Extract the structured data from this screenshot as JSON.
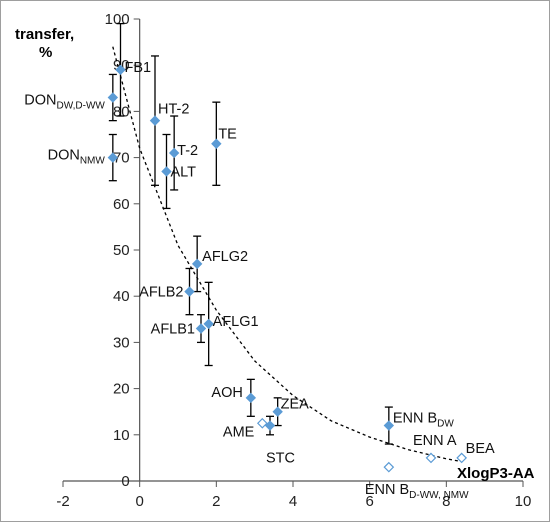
{
  "chart_data": {
    "type": "scatter",
    "title": "",
    "ylabel_lines": [
      "transfer,",
      "%"
    ],
    "xlabel": "XlogP3-AA",
    "xlim": [
      -2,
      10
    ],
    "ylim": [
      0,
      100
    ],
    "x_ticks": [
      -2,
      0,
      2,
      4,
      6,
      8,
      10
    ],
    "y_ticks": [
      0,
      10,
      20,
      30,
      40,
      50,
      60,
      70,
      80,
      90,
      100
    ],
    "grid": false,
    "colors": {
      "filled": "#5b9bd5",
      "open": "#5b9bd5",
      "error_bar": "#000000",
      "trend": "#000000",
      "axis": "#555555"
    },
    "points": [
      {
        "label": "FB1",
        "x": -0.5,
        "y": 89,
        "err": [
          79,
          99
        ],
        "style": "filled"
      },
      {
        "label": "DON",
        "sub": "DW,D-WW",
        "x": -0.7,
        "y": 83,
        "err": [
          78,
          88
        ],
        "style": "filled"
      },
      {
        "label": "DON",
        "sub": "NMW",
        "x": -0.7,
        "y": 70,
        "err": [
          65,
          75
        ],
        "style": "filled"
      },
      {
        "label": "HT-2",
        "x": 0.4,
        "y": 78,
        "err": [
          64,
          92
        ],
        "style": "filled"
      },
      {
        "label": "T-2",
        "x": 0.9,
        "y": 71,
        "err": [
          63,
          79
        ],
        "style": "filled"
      },
      {
        "label": "ALT",
        "x": 0.7,
        "y": 67,
        "err": [
          59,
          75
        ],
        "style": "filled"
      },
      {
        "label": "TE",
        "x": 2.0,
        "y": 73,
        "err": [
          64,
          82
        ],
        "style": "filled"
      },
      {
        "label": "AFLG2",
        "x": 1.5,
        "y": 47,
        "err": [
          41,
          53
        ],
        "style": "filled"
      },
      {
        "label": "AFLB2",
        "x": 1.3,
        "y": 41,
        "err": [
          36,
          46
        ],
        "style": "filled"
      },
      {
        "label": "AFLG1",
        "x": 1.8,
        "y": 34,
        "err": [
          25,
          43
        ],
        "style": "filled"
      },
      {
        "label": "AFLB1",
        "x": 1.6,
        "y": 33,
        "err": [
          30,
          36
        ],
        "style": "filled"
      },
      {
        "label": "AOH",
        "x": 2.9,
        "y": 18,
        "err": [
          14,
          22
        ],
        "style": "filled"
      },
      {
        "label": "ZEA",
        "x": 3.6,
        "y": 15,
        "err": [
          12,
          18
        ],
        "style": "filled"
      },
      {
        "label": "STC",
        "x": 3.4,
        "y": 12,
        "err": [
          10,
          14
        ],
        "style": "filled"
      },
      {
        "label": "AME",
        "x": 3.2,
        "y": 12.5,
        "err": null,
        "style": "open"
      },
      {
        "label": "ENN B",
        "sub": "DW",
        "x": 6.5,
        "y": 12,
        "err": [
          8,
          16
        ],
        "style": "filled"
      },
      {
        "label": "ENN A",
        "x": 7.6,
        "y": 5,
        "err": null,
        "style": "open"
      },
      {
        "label": "BEA",
        "x": 8.4,
        "y": 5,
        "err": null,
        "style": "open"
      },
      {
        "label": "ENN B",
        "sub": "D-WW, NMW",
        "x": 6.5,
        "y": 3,
        "err": null,
        "style": "open"
      }
    ],
    "trendline": {
      "type": "exponential",
      "x": [
        -0.7,
        0,
        1,
        2,
        3,
        4,
        5,
        6,
        7,
        8,
        8.4
      ],
      "y": [
        94,
        72,
        51,
        37,
        26,
        18.5,
        13,
        9.5,
        6.8,
        4.8,
        4.2
      ]
    }
  }
}
